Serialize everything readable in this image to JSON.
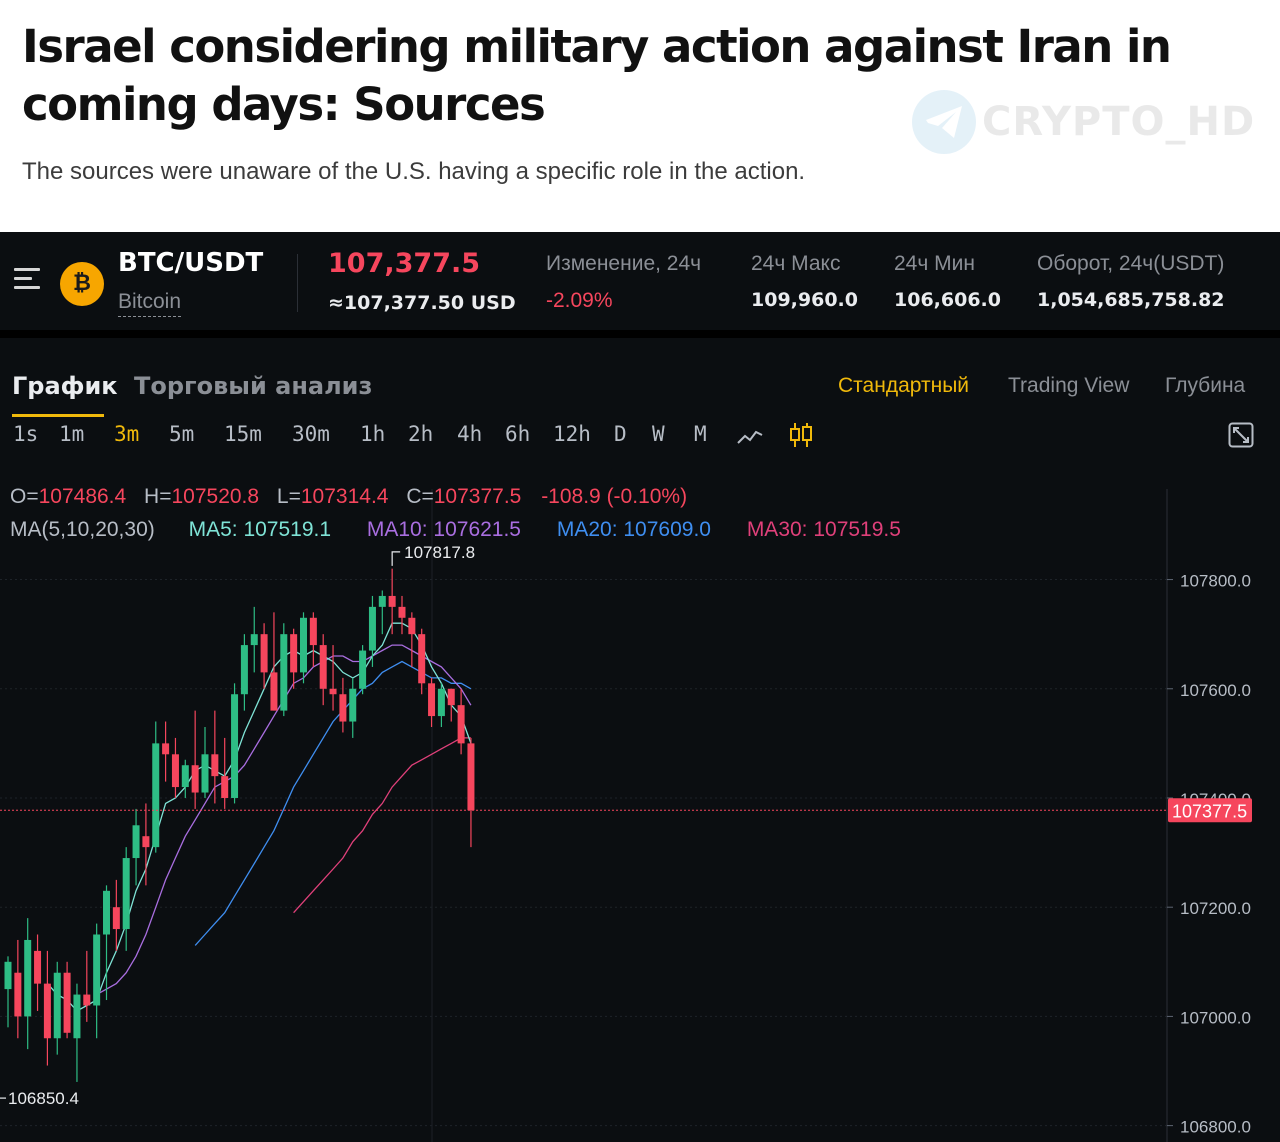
{
  "article": {
    "headline_line1": "Israel considering military action against Iran in",
    "headline_line2": "coming days: Sources",
    "subheadline": "The sources were unaware of the U.S. having a specific role in the action.",
    "watermark": "CRYPTO_HD"
  },
  "ticker": {
    "coin_symbol": "₿",
    "pair": "BTC/USDT",
    "name": "Bitcoin",
    "last_price": "107,377.5",
    "last_price_usd": "≈107,377.50 USD",
    "stats": [
      {
        "label": "Изменение, 24ч",
        "value": "-2.09%"
      },
      {
        "label": "24ч Макс",
        "value": "109,960.0"
      },
      {
        "label": "24ч Мин",
        "value": "106,606.0"
      },
      {
        "label": "Оборот, 24ч(USDT)",
        "value": "1,054,685,758.82"
      }
    ]
  },
  "tabs": {
    "chart": "График",
    "analysis": "Торговый анализ",
    "standard": "Стандартный",
    "tradingview": "Trading View",
    "depth": "Глубина"
  },
  "intervals": [
    "1s",
    "1m",
    "3m",
    "5m",
    "15m",
    "30m",
    "1h",
    "2h",
    "4h",
    "6h",
    "12h",
    "D",
    "W",
    "M"
  ],
  "active_interval": "3m",
  "colors": {
    "up": "#2ebd85",
    "down": "#f6465d",
    "ma5": "#7fe3d6",
    "ma10": "#a96ee0",
    "ma20": "#3f8ef0",
    "ma30": "#e0407a",
    "accent": "#f0b90b"
  },
  "chart_data": {
    "type": "candlestick",
    "title": "",
    "ohlc_legend": {
      "o_label": "O=",
      "o": "107486.4",
      "h_label": "H=",
      "h": "107520.8",
      "l_label": "L=",
      "l": "107314.4",
      "c_label": "C=",
      "c": "107377.5",
      "change": "-108.9 (-0.10%)"
    },
    "ma_legend": {
      "label": "MA(5,10,20,30)",
      "ma5": "MA5: 107519.1",
      "ma10": "MA10: 107621.5",
      "ma20": "MA20: 107609.0",
      "ma30": "MA30: 107519.5"
    },
    "y_ticks": [
      107800.0,
      107600.0,
      107400.0,
      107200.0,
      107000.0,
      106800.0
    ],
    "y_tick_labels": [
      "107800.0",
      "107600.0",
      "107400.0",
      "107200.0",
      "107000.0",
      "106800.0"
    ],
    "ylim": [
      106770,
      107975
    ],
    "current_price_label": "107377.5",
    "current_price": 107377.5,
    "high_marker_label": "107817.8",
    "high_marker_value": 107817.8,
    "low_marker_label": "106850.4",
    "low_marker_value": 106850.4,
    "candles": [
      {
        "o": 107050,
        "h": 107110,
        "l": 106980,
        "c": 107100
      },
      {
        "o": 107080,
        "h": 107140,
        "l": 106960,
        "c": 107000
      },
      {
        "o": 107000,
        "h": 107180,
        "l": 106940,
        "c": 107140
      },
      {
        "o": 107120,
        "h": 107150,
        "l": 107010,
        "c": 107060
      },
      {
        "o": 107060,
        "h": 107120,
        "l": 106910,
        "c": 106960
      },
      {
        "o": 106960,
        "h": 107100,
        "l": 106930,
        "c": 107080
      },
      {
        "o": 107080,
        "h": 107100,
        "l": 106960,
        "c": 106970
      },
      {
        "o": 106960,
        "h": 107060,
        "l": 106880,
        "c": 107040
      },
      {
        "o": 107040,
        "h": 107120,
        "l": 106990,
        "c": 107020
      },
      {
        "o": 107020,
        "h": 107170,
        "l": 106960,
        "c": 107150
      },
      {
        "o": 107150,
        "h": 107240,
        "l": 107030,
        "c": 107230
      },
      {
        "o": 107200,
        "h": 107250,
        "l": 107120,
        "c": 107160
      },
      {
        "o": 107160,
        "h": 107310,
        "l": 107120,
        "c": 107290
      },
      {
        "o": 107290,
        "h": 107380,
        "l": 107240,
        "c": 107350
      },
      {
        "o": 107330,
        "h": 107390,
        "l": 107240,
        "c": 107310
      },
      {
        "o": 107310,
        "h": 107540,
        "l": 107300,
        "c": 107500
      },
      {
        "o": 107500,
        "h": 107540,
        "l": 107430,
        "c": 107480
      },
      {
        "o": 107480,
        "h": 107510,
        "l": 107400,
        "c": 107420
      },
      {
        "o": 107420,
        "h": 107470,
        "l": 107400,
        "c": 107460
      },
      {
        "o": 107460,
        "h": 107560,
        "l": 107380,
        "c": 107410
      },
      {
        "o": 107410,
        "h": 107530,
        "l": 107400,
        "c": 107480
      },
      {
        "o": 107480,
        "h": 107560,
        "l": 107390,
        "c": 107440
      },
      {
        "o": 107440,
        "h": 107510,
        "l": 107380,
        "c": 107400
      },
      {
        "o": 107400,
        "h": 107610,
        "l": 107390,
        "c": 107590
      },
      {
        "o": 107590,
        "h": 107700,
        "l": 107560,
        "c": 107680
      },
      {
        "o": 107680,
        "h": 107750,
        "l": 107630,
        "c": 107700
      },
      {
        "o": 107700,
        "h": 107720,
        "l": 107600,
        "c": 107630
      },
      {
        "o": 107630,
        "h": 107740,
        "l": 107560,
        "c": 107560
      },
      {
        "o": 107560,
        "h": 107720,
        "l": 107550,
        "c": 107700
      },
      {
        "o": 107700,
        "h": 107710,
        "l": 107600,
        "c": 107630
      },
      {
        "o": 107630,
        "h": 107740,
        "l": 107610,
        "c": 107730
      },
      {
        "o": 107730,
        "h": 107740,
        "l": 107640,
        "c": 107680
      },
      {
        "o": 107680,
        "h": 107700,
        "l": 107570,
        "c": 107600
      },
      {
        "o": 107600,
        "h": 107680,
        "l": 107560,
        "c": 107590
      },
      {
        "o": 107590,
        "h": 107620,
        "l": 107520,
        "c": 107540
      },
      {
        "o": 107540,
        "h": 107620,
        "l": 107510,
        "c": 107600
      },
      {
        "o": 107600,
        "h": 107680,
        "l": 107590,
        "c": 107670
      },
      {
        "o": 107670,
        "h": 107770,
        "l": 107640,
        "c": 107750
      },
      {
        "o": 107750,
        "h": 107780,
        "l": 107700,
        "c": 107770
      },
      {
        "o": 107770,
        "h": 107820,
        "l": 107700,
        "c": 107750
      },
      {
        "o": 107750,
        "h": 107770,
        "l": 107700,
        "c": 107730
      },
      {
        "o": 107730,
        "h": 107740,
        "l": 107640,
        "c": 107700
      },
      {
        "o": 107700,
        "h": 107710,
        "l": 107590,
        "c": 107610
      },
      {
        "o": 107610,
        "h": 107620,
        "l": 107530,
        "c": 107550
      },
      {
        "o": 107550,
        "h": 107610,
        "l": 107530,
        "c": 107600
      },
      {
        "o": 107600,
        "h": 107600,
        "l": 107540,
        "c": 107570
      },
      {
        "o": 107570,
        "h": 107600,
        "l": 107480,
        "c": 107500
      },
      {
        "o": 107500,
        "h": 107510,
        "l": 107310,
        "c": 107377.5
      }
    ],
    "ma5": [
      null,
      null,
      null,
      null,
      107060,
      107040,
      107030,
      107010,
      107020,
      107030,
      107080,
      107120,
      107170,
      107230,
      107270,
      107330,
      107390,
      107400,
      107420,
      107450,
      107460,
      107450,
      107440,
      107470,
      107520,
      107560,
      107600,
      107640,
      107660,
      107670,
      107660,
      107670,
      107660,
      107650,
      107630,
      107620,
      107630,
      107660,
      107680,
      107720,
      107720,
      107710,
      107680,
      107640,
      107610,
      107570,
      107550,
      107500
    ],
    "ma10": [
      null,
      null,
      null,
      null,
      null,
      null,
      null,
      null,
      null,
      107040,
      107050,
      107060,
      107080,
      107110,
      107150,
      107200,
      107250,
      107290,
      107330,
      107360,
      107390,
      107420,
      107430,
      107440,
      107460,
      107490,
      107520,
      107550,
      107580,
      107610,
      107620,
      107640,
      107650,
      107660,
      107660,
      107650,
      107650,
      107660,
      107670,
      107680,
      107680,
      107670,
      107660,
      107650,
      107640,
      107620,
      107600,
      107570
    ],
    "ma20": [
      null,
      null,
      null,
      null,
      null,
      null,
      null,
      null,
      null,
      null,
      null,
      null,
      null,
      null,
      null,
      null,
      null,
      null,
      null,
      107130,
      107150,
      107170,
      107190,
      107220,
      107250,
      107280,
      107310,
      107340,
      107380,
      107420,
      107450,
      107480,
      107510,
      107540,
      107560,
      107580,
      107600,
      107610,
      107630,
      107640,
      107650,
      107640,
      107630,
      107620,
      107620,
      107610,
      107610,
      107600
    ],
    "ma30": [
      null,
      null,
      null,
      null,
      null,
      null,
      null,
      null,
      null,
      null,
      null,
      null,
      null,
      null,
      null,
      null,
      null,
      null,
      null,
      null,
      null,
      null,
      null,
      null,
      null,
      null,
      null,
      null,
      null,
      107190,
      107210,
      107230,
      107250,
      107270,
      107290,
      107320,
      107340,
      107370,
      107390,
      107420,
      107440,
      107460,
      107470,
      107480,
      107490,
      107500,
      107510,
      107510
    ]
  }
}
